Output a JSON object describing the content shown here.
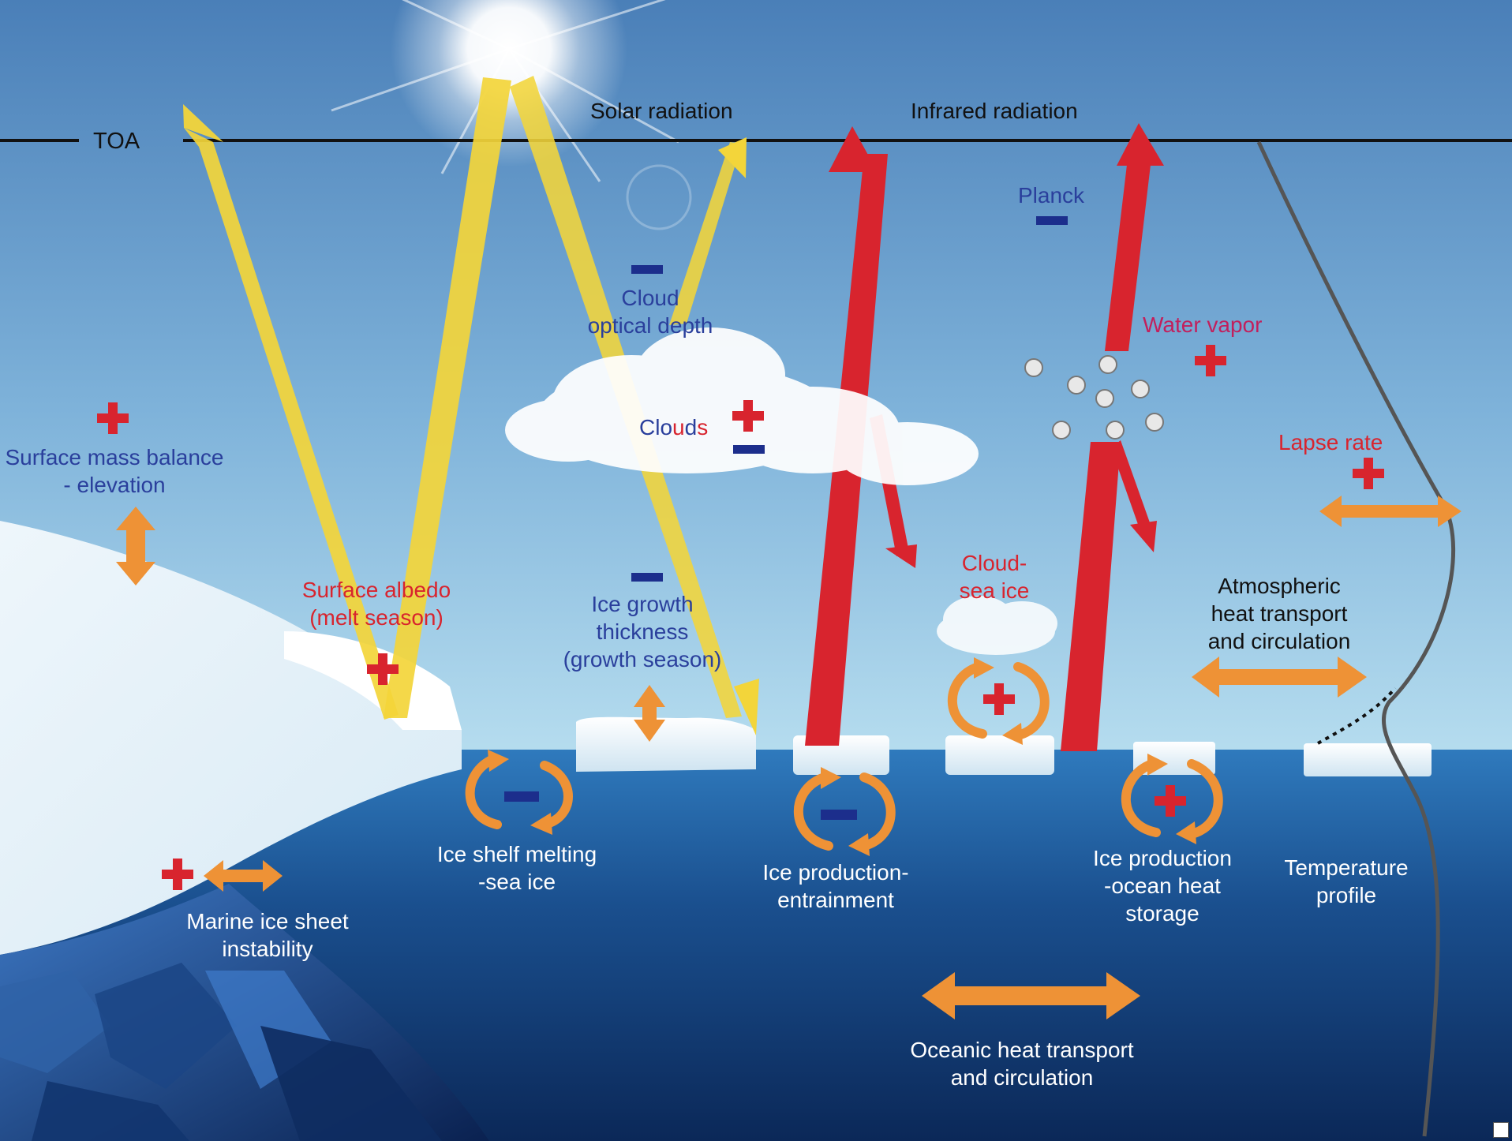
{
  "labels": {
    "toa": "TOA",
    "solar_radiation": "Solar radiation",
    "infrared_radiation": "Infrared radiation",
    "planck": "Planck",
    "cloud_optical_depth": [
      "Cloud",
      "optical depth"
    ],
    "water_vapor": "Water vapor",
    "clouds_letters": [
      {
        "ch": "C",
        "color": "#2a3f9c"
      },
      {
        "ch": "l",
        "color": "#2a3f9c"
      },
      {
        "ch": "o",
        "color": "#2a3f9c"
      },
      {
        "ch": "u",
        "color": "#d8242e"
      },
      {
        "ch": "d",
        "color": "#2a3f9c"
      },
      {
        "ch": "s",
        "color": "#d8242e"
      }
    ],
    "surface_mass_balance": [
      "Surface mass balance",
      "- elevation"
    ],
    "lapse_rate": "Lapse rate",
    "surface_albedo": [
      "Surface albedo",
      "(melt season)"
    ],
    "ice_growth": [
      "Ice growth",
      "thickness",
      "(growth season)"
    ],
    "cloud_sea_ice": [
      "Cloud-",
      "sea ice"
    ],
    "atmospheric_heat": [
      "Atmospheric",
      "heat transport",
      "and circulation"
    ],
    "ice_shelf_melting": [
      "Ice shelf melting",
      "-sea ice"
    ],
    "ice_production_entrainment": [
      "Ice production-",
      "entrainment"
    ],
    "ice_production_ocean": [
      "Ice production",
      "-ocean heat",
      "storage"
    ],
    "temperature_profile": [
      "Temperature",
      "profile"
    ],
    "marine_ice_sheet": [
      "Marine ice sheet",
      "instability"
    ],
    "oceanic_heat": [
      "Oceanic heat transport",
      "and circulation"
    ]
  },
  "colors": {
    "sky_top": "#4a7fb8",
    "sky_bottom": "#a9d6ec",
    "ocean_top": "#2b74b6",
    "ocean_bottom": "#0c2a5a",
    "solar_arrow": "#f3d53a",
    "infrared_arrow": "#d8242e",
    "transport_arrow": "#ee9236",
    "positive_sign": "#d8242e",
    "negative_sign": "#1c2e8c"
  },
  "feedback_signs": {
    "surface_mass_balance": "+",
    "cloud_optical_depth": "-",
    "clouds": [
      "+",
      "-"
    ],
    "planck": "-",
    "water_vapor": "+",
    "lapse_rate": "+",
    "surface_albedo": "+",
    "ice_growth": "-",
    "cloud_sea_ice": "+",
    "ice_shelf_melting": "-",
    "ice_production_entrainment": "-",
    "ice_production_ocean": "+",
    "marine_ice_sheet": "+"
  }
}
